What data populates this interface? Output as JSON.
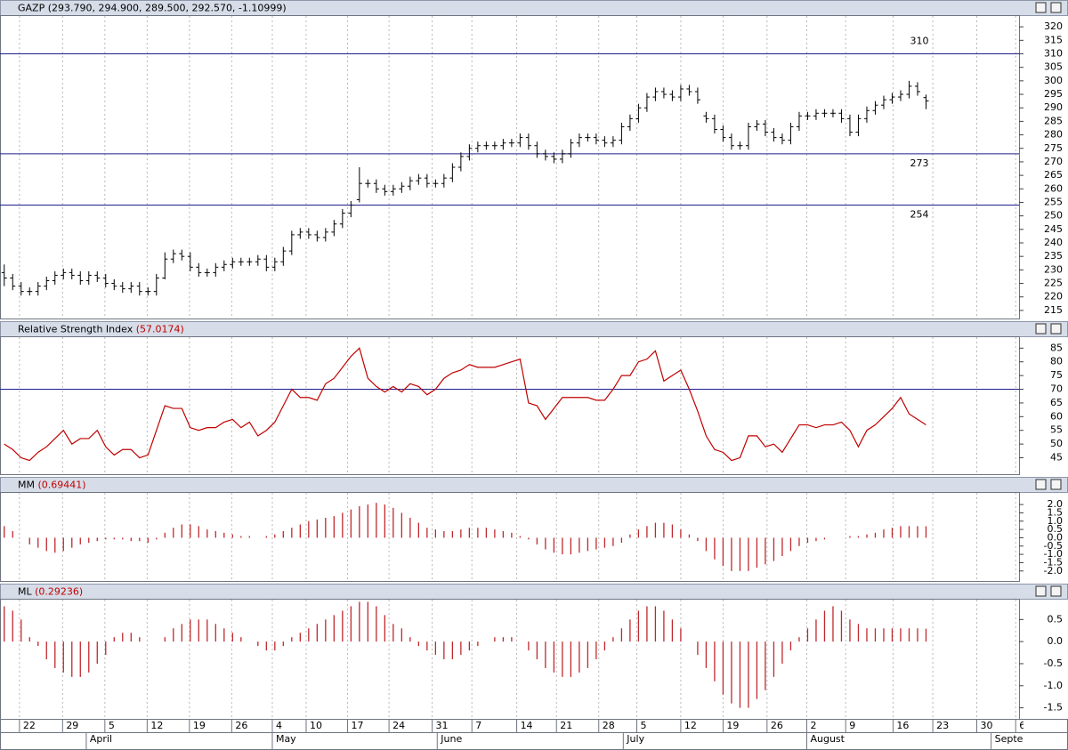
{
  "x_axis": {
    "xlim": [
      0,
      120.5
    ],
    "xticks": [
      {
        "value": 2.3,
        "label": "22"
      },
      {
        "value": 7.4,
        "label": "29"
      },
      {
        "value": 12.4,
        "label": "5"
      },
      {
        "value": 17.4,
        "label": "12"
      },
      {
        "value": 22.4,
        "label": "19"
      },
      {
        "value": 27.4,
        "label": "26"
      },
      {
        "value": 32.2,
        "label": "4"
      },
      {
        "value": 36.2,
        "label": "10"
      },
      {
        "value": 41.1,
        "label": "17"
      },
      {
        "value": 46,
        "label": "24"
      },
      {
        "value": 51.1,
        "label": "31"
      },
      {
        "value": 55.8,
        "label": "7"
      },
      {
        "value": 61.1,
        "label": "14"
      },
      {
        "value": 65.8,
        "label": "21"
      },
      {
        "value": 70.8,
        "label": "28"
      },
      {
        "value": 75.3,
        "label": "5"
      },
      {
        "value": 80.5,
        "label": "12"
      },
      {
        "value": 85.5,
        "label": "19"
      },
      {
        "value": 90.7,
        "label": "26"
      },
      {
        "value": 95.4,
        "label": "2"
      },
      {
        "value": 100,
        "label": "9"
      },
      {
        "value": 105.6,
        "label": "16"
      },
      {
        "value": 110.3,
        "label": "23"
      },
      {
        "value": 115.5,
        "label": "30"
      },
      {
        "value": 120.1,
        "label": "6"
      }
    ],
    "month_ticks": [
      {
        "value": 10.2,
        "label": "April"
      },
      {
        "value": 32.2,
        "label": "May"
      },
      {
        "value": 51.7,
        "label": "June"
      },
      {
        "value": 73.7,
        "label": "July"
      },
      {
        "value": 95.4,
        "label": "August"
      },
      {
        "value": 117.2,
        "label": "September"
      }
    ]
  },
  "chart_data": [
    {
      "type": "ohlc",
      "title": "GAZP (293.790, 294.900, 289.500, 292.570, -1.10999)",
      "color": "#000000",
      "ylim": [
        212,
        324
      ],
      "yticks": [
        320,
        315,
        310,
        305,
        300,
        295,
        290,
        285,
        280,
        275,
        270,
        265,
        260,
        255,
        250,
        245,
        240,
        235,
        230,
        225,
        220,
        215
      ],
      "levels": [
        310,
        273,
        254
      ],
      "level_color": "#1e1e8c",
      "open": [
        229,
        227,
        224,
        222,
        222,
        224,
        226,
        228,
        229,
        228,
        226,
        228,
        227,
        225,
        224,
        223,
        224,
        222,
        222,
        227,
        234,
        236,
        235,
        231,
        229,
        229,
        231,
        232,
        233,
        233,
        233,
        234,
        231,
        233,
        237,
        243,
        244,
        243,
        242,
        244,
        247,
        251,
        256,
        262,
        262,
        260,
        259,
        260,
        261,
        263,
        264,
        262,
        262,
        264,
        268,
        272,
        275,
        276,
        276,
        276,
        277,
        277,
        279,
        276,
        273,
        272,
        271,
        273,
        277,
        279,
        279,
        278,
        277,
        278,
        283,
        286,
        290,
        294,
        296,
        295,
        294,
        297,
        296,
        287,
        286,
        282,
        279,
        276,
        276,
        283,
        284,
        281,
        279,
        278,
        283,
        287,
        287,
        288,
        288,
        288,
        286,
        281,
        286,
        289,
        291,
        293,
        294,
        295,
        298,
        293.79
      ],
      "high": [
        232,
        228.5,
        225.5,
        223.5,
        225.5,
        227.5,
        229.5,
        230.5,
        230.5,
        229.5,
        229.5,
        229.5,
        228.5,
        226.5,
        225.5,
        225.5,
        225.5,
        223.5,
        228.5,
        236.5,
        237.5,
        237.5,
        236.5,
        232.5,
        230.5,
        232.5,
        233.5,
        234.5,
        234.5,
        234.5,
        235.5,
        235.5,
        234.5,
        238.5,
        244.5,
        245.5,
        245.5,
        244.5,
        245.5,
        248.5,
        252.5,
        255.5,
        268,
        263.5,
        263.5,
        261.5,
        261.5,
        262.5,
        264.5,
        265.5,
        265.5,
        263.5,
        265.5,
        269.5,
        273.5,
        276.5,
        277.5,
        277.5,
        277.5,
        278.5,
        278.5,
        280.5,
        280.5,
        277.5,
        274.5,
        273.5,
        274.5,
        278.5,
        280.5,
        280.5,
        280.5,
        279.5,
        279.5,
        284.5,
        287.5,
        291.5,
        295.5,
        297.5,
        297.5,
        296.5,
        298.5,
        298.5,
        297.5,
        288.5,
        287.5,
        283.5,
        280.5,
        277.5,
        284.5,
        285.5,
        285.5,
        282.5,
        280.5,
        284.5,
        288.5,
        288.5,
        289.5,
        289.5,
        289.5,
        289.5,
        287.5,
        287.5,
        290.5,
        292.5,
        294.5,
        295.5,
        296.5,
        300,
        299.5,
        294.9
      ],
      "low": [
        224,
        222.5,
        220.5,
        220.5,
        220.5,
        222.5,
        224.5,
        226.5,
        226.5,
        224.5,
        224.5,
        225.5,
        223.5,
        222.5,
        221.5,
        221.5,
        220.5,
        220.5,
        220.5,
        226.5,
        232.5,
        233.5,
        229.5,
        227.5,
        227.5,
        227.5,
        229.5,
        230.5,
        231.5,
        231.5,
        231.5,
        229.5,
        229.5,
        231.5,
        235.5,
        241.5,
        241.5,
        240.5,
        240.5,
        242.5,
        245.5,
        249.5,
        255,
        260.5,
        258.5,
        257.5,
        257.5,
        258.5,
        259.5,
        261.5,
        260.5,
        260.5,
        260.5,
        262.5,
        266.5,
        270.5,
        273.5,
        274.5,
        274.5,
        274.5,
        275.5,
        275.5,
        274.5,
        271.5,
        270.5,
        269.5,
        269.5,
        271.5,
        275.5,
        277.5,
        276.5,
        275.5,
        275.5,
        276.5,
        281.5,
        284.5,
        288.5,
        292.5,
        293.5,
        292.5,
        292.5,
        294.5,
        291.5,
        284.5,
        280.5,
        277.5,
        274.5,
        274.5,
        274.5,
        281.5,
        279.5,
        277.5,
        276.5,
        276.5,
        281.5,
        285.5,
        285.5,
        286.5,
        286.5,
        284.5,
        279.5,
        279.5,
        284.5,
        287.5,
        289.5,
        291.5,
        292.5,
        293.5,
        294.5,
        289.5
      ],
      "close": [
        227,
        224,
        222,
        222,
        224,
        226,
        228,
        229,
        228,
        226,
        228,
        227,
        225,
        224,
        223,
        224,
        222,
        222,
        227,
        234,
        236,
        235,
        231,
        229,
        229,
        231,
        232,
        233,
        233,
        233,
        234,
        231,
        233,
        237,
        243,
        244,
        243,
        242,
        244,
        247,
        251,
        254,
        262,
        262,
        260,
        259,
        260,
        261,
        263,
        264,
        262,
        262,
        264,
        268,
        272,
        275,
        276,
        276,
        276,
        277,
        277,
        279,
        276,
        273,
        272,
        271,
        273,
        277,
        279,
        279,
        278,
        277,
        278,
        283,
        286,
        290,
        294,
        296,
        295,
        294,
        297,
        296,
        293,
        286,
        282,
        279,
        276,
        276,
        283,
        284,
        281,
        279,
        278,
        283,
        287,
        287,
        288,
        288,
        288,
        286,
        281,
        286,
        289,
        291,
        293,
        294,
        295,
        298,
        296,
        292.57
      ]
    },
    {
      "type": "line",
      "title": "Relative Strength Index",
      "subtitle": "(57.0174)",
      "color": "#c00000",
      "ylim": [
        39,
        89
      ],
      "yticks": [
        85,
        80,
        75,
        70,
        65,
        60,
        55,
        50,
        45
      ],
      "levels": [
        70
      ],
      "level_color": "#1e1e8c",
      "values": [
        50,
        48,
        45,
        44,
        47,
        49,
        52,
        55,
        50,
        52,
        52,
        55,
        49,
        46,
        48,
        48,
        45,
        46,
        55,
        64,
        63,
        63,
        56,
        55,
        56,
        56,
        58,
        59,
        56,
        58,
        53,
        55,
        58,
        64,
        70,
        67,
        67,
        66,
        72,
        74,
        78,
        82,
        85,
        74,
        71,
        69,
        71,
        69,
        72,
        71,
        68,
        70,
        74,
        76,
        77,
        79,
        78,
        78,
        78,
        79,
        80,
        81,
        65,
        64,
        59,
        63,
        67,
        67,
        67,
        67,
        66,
        66,
        70,
        75,
        75,
        80,
        81,
        84,
        73,
        75,
        77,
        70,
        62,
        53,
        48,
        47,
        44,
        45,
        53,
        53,
        49,
        50,
        47,
        52,
        57,
        57,
        56,
        57,
        57,
        58,
        55,
        49,
        55,
        57,
        60,
        63,
        67,
        61,
        59,
        57.0174
      ]
    },
    {
      "type": "stem",
      "title": "MM",
      "subtitle": "(0.69441)",
      "color": "#c0282d",
      "ylim": [
        -2.6,
        2.7
      ],
      "yticks": [
        {
          "value": 2,
          "label": "2.0"
        },
        1.5,
        {
          "value": 1,
          "label": "1.0"
        },
        0.5,
        {
          "value": 0,
          "label": "0.0"
        },
        -0.5,
        {
          "value": -1,
          "label": "-1.0"
        },
        -1.5,
        {
          "value": -2,
          "label": "-2.0"
        }
      ],
      "values": [
        0.7,
        0.4,
        0,
        -0.4,
        -0.6,
        -0.8,
        -0.9,
        -0.8,
        -0.6,
        -0.4,
        -0.3,
        -0.2,
        -0.1,
        -0.1,
        -0.1,
        -0.2,
        -0.2,
        -0.3,
        -0.1,
        0.3,
        0.6,
        0.8,
        0.8,
        0.7,
        0.5,
        0.4,
        0.3,
        0.2,
        0.1,
        0.1,
        0,
        0.1,
        0.2,
        0.4,
        0.6,
        0.8,
        1.0,
        1.1,
        1.2,
        1.3,
        1.5,
        1.7,
        1.9,
        2.0,
        2.1,
        2.0,
        1.8,
        1.5,
        1.2,
        0.9,
        0.6,
        0.5,
        0.4,
        0.4,
        0.5,
        0.6,
        0.6,
        0.6,
        0.5,
        0.4,
        0.3,
        0.1,
        -0.1,
        -0.4,
        -0.7,
        -0.9,
        -1.0,
        -1.0,
        -0.9,
        -0.8,
        -0.7,
        -0.6,
        -0.5,
        -0.3,
        0.2,
        0.5,
        0.7,
        0.9,
        0.9,
        0.8,
        0.5,
        0.2,
        -0.2,
        -0.8,
        -1.3,
        -1.7,
        -2.0,
        -2.0,
        -2.0,
        -1.8,
        -1.6,
        -1.4,
        -1.1,
        -0.8,
        -0.5,
        -0.3,
        -0.2,
        -0.1,
        0,
        0,
        0.1,
        0.1,
        0.2,
        0.3,
        0.5,
        0.6,
        0.7,
        0.7,
        0.7,
        0.69441
      ]
    },
    {
      "type": "stem",
      "title": "ML",
      "subtitle": "(0.29236)",
      "color": "#c0282d",
      "ylim": [
        -1.75,
        0.95
      ],
      "yticks": [
        0.5,
        {
          "value": 0,
          "label": "0.0"
        },
        -0.5,
        {
          "value": -1,
          "label": "-1.0"
        },
        -1.5
      ],
      "values": [
        0.8,
        0.7,
        0.5,
        0.1,
        -0.1,
        -0.4,
        -0.6,
        -0.7,
        -0.8,
        -0.8,
        -0.7,
        -0.5,
        -0.3,
        0.1,
        0.2,
        0.2,
        0.1,
        0,
        0,
        0.1,
        0.3,
        0.4,
        0.5,
        0.5,
        0.5,
        0.4,
        0.3,
        0.2,
        0.1,
        0,
        -0.1,
        -0.2,
        -0.2,
        -0.1,
        0.1,
        0.2,
        0.3,
        0.4,
        0.5,
        0.6,
        0.7,
        0.8,
        0.9,
        0.9,
        0.8,
        0.6,
        0.4,
        0.3,
        0.1,
        -0.1,
        -0.2,
        -0.3,
        -0.4,
        -0.4,
        -0.3,
        -0.2,
        -0.1,
        0,
        0.1,
        0.1,
        0.1,
        0,
        -0.2,
        -0.4,
        -0.6,
        -0.7,
        -0.8,
        -0.8,
        -0.7,
        -0.6,
        -0.4,
        -0.2,
        0.1,
        0.3,
        0.5,
        0.7,
        0.8,
        0.8,
        0.7,
        0.5,
        0.3,
        0,
        -0.3,
        -0.6,
        -0.9,
        -1.2,
        -1.4,
        -1.5,
        -1.5,
        -1.3,
        -1.1,
        -0.8,
        -0.5,
        -0.2,
        0.1,
        0.3,
        0.5,
        0.7,
        0.8,
        0.7,
        0.5,
        0.4,
        0.3,
        0.3,
        0.3,
        0.3,
        0.3,
        0.3,
        0.3,
        0.29236
      ]
    }
  ]
}
